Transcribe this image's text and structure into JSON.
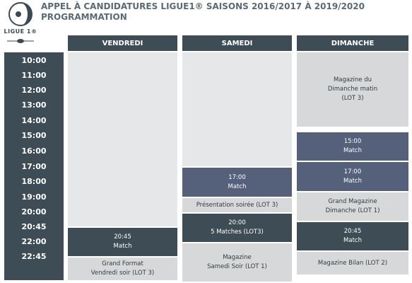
{
  "header": {
    "logo_text": "LIGUE 1®",
    "title_line1": "APPEL À CANDIDATURES LIGUE1® SAISONS 2016/2017 À 2019/2020",
    "title_line2": "PROGRAMMATION"
  },
  "times": [
    "10:00",
    "11:00",
    "12:00",
    "13:00",
    "14:00",
    "15:00",
    "16:00",
    "17:00",
    "18:00",
    "19:00",
    "20:00",
    "20:45",
    "22:00",
    "22:45"
  ],
  "days": {
    "friday": {
      "label": "VENDREDI",
      "blocks": [
        {
          "text": ""
        },
        {
          "text": "20:45\nMatch"
        },
        {
          "text": "Grand Format\nVendredi soir (LOT 3)"
        }
      ]
    },
    "saturday": {
      "label": "SAMEDI",
      "blocks": [
        {
          "text": ""
        },
        {
          "text": "17:00\nMatch"
        },
        {
          "text": "Présentation soirée (LOT 3)"
        },
        {
          "text": "20:00\n5 Matches (LOT3)"
        },
        {
          "text": "Magazine\nSamedi Soir (LOT 1)"
        }
      ]
    },
    "sunday": {
      "label": "DIMANCHE",
      "blocks": [
        {
          "text": "Magazine du\nDimanche matin\n(LOT 3)"
        },
        {
          "text": "15:00\nMatch"
        },
        {
          "text": "17:00\nMatch"
        },
        {
          "text": "Grand Magazine\nDimanche (LOT 1)"
        },
        {
          "text": "20:45\nMatch"
        },
        {
          "text": "Magazine Bilan (LOT 2)"
        }
      ]
    }
  }
}
